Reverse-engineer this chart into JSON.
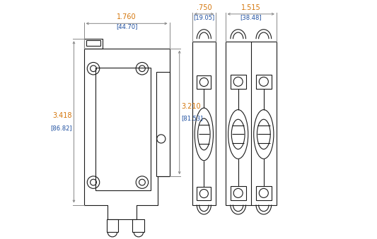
{
  "bg_color": "#ffffff",
  "line_color": "#1a1a1a",
  "dim_color_orange": "#d4750a",
  "dim_color_blue": "#1e4fa0",
  "dim_line_color": "#888888",
  "views": {
    "side": {
      "sx": 0.06,
      "sy": 0.08,
      "sw": 0.36,
      "sh": 0.72,
      "dim_top_label": "1.760",
      "dim_top_bracket": "[44.70]",
      "dim_left_label": "3.418",
      "dim_left_bracket": "[86.82]",
      "dim_right_label": "3.210",
      "dim_right_bracket": "[81.53]"
    },
    "front": {
      "fx": 0.515,
      "fy": 0.09,
      "fw": 0.1,
      "fh": 0.74,
      "dim_top_label": ".750",
      "dim_top_bracket": "[19.05]"
    },
    "front2": {
      "fx2": 0.655,
      "fy2": 0.09,
      "fw2": 0.215,
      "fh2": 0.74,
      "dim_top_label": "1.515",
      "dim_top_bracket": "[38.48]"
    }
  }
}
